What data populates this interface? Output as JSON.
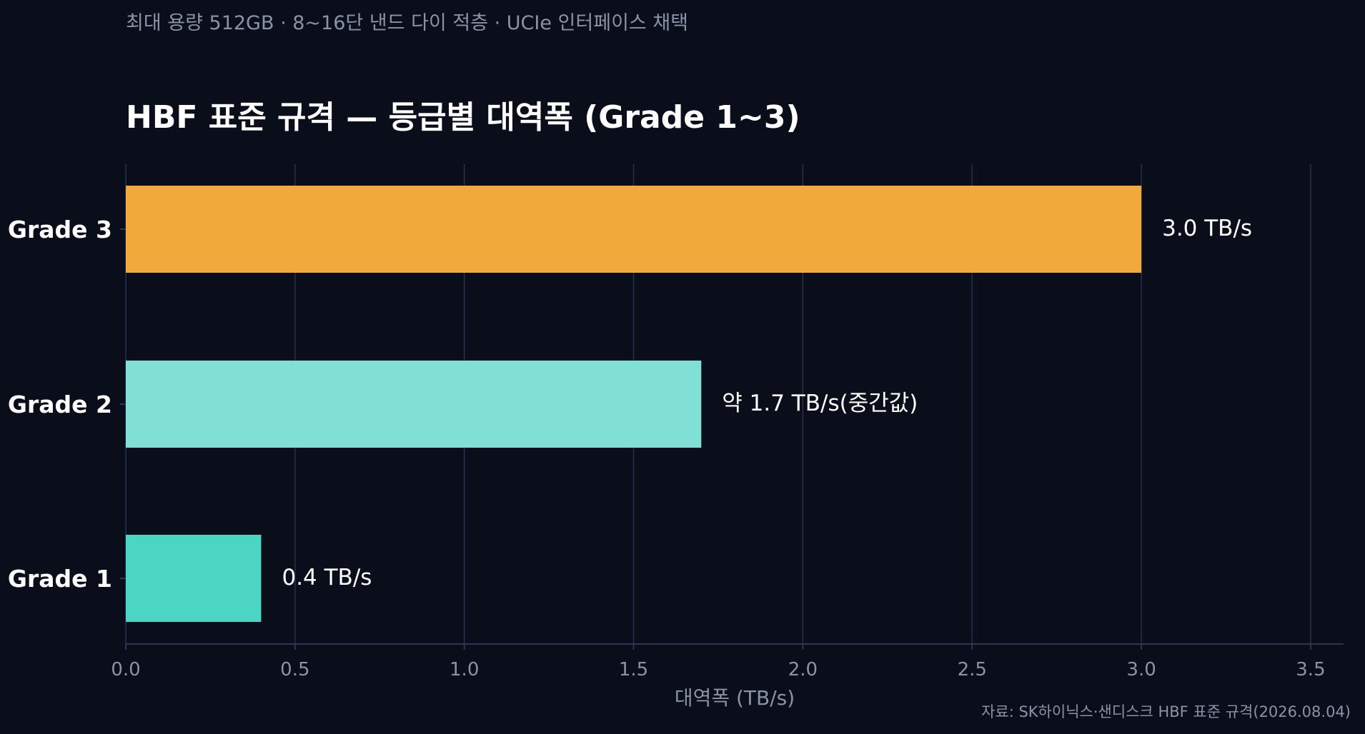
{
  "chart_data": {
    "type": "bar",
    "orientation": "horizontal",
    "subtitle": "최대 용량 512GB · 8~16단 낸드 다이 적층 · UCIe 인터페이스 채택",
    "title": "HBF 표준 규격 — 등급별 대역폭 (Grade 1~3)",
    "categories": [
      "Grade 3",
      "Grade 2",
      "Grade 1"
    ],
    "values": [
      3.0,
      1.7,
      0.4
    ],
    "data_labels": [
      "3.0 TB/s",
      "약 1.7 TB/s(중간값)",
      "0.4 TB/s"
    ],
    "colors": [
      "#f2a93b",
      "#80e0d5",
      "#4dd5c4"
    ],
    "xlabel": "대역폭 (TB/s)",
    "xlim": [
      0,
      3.6
    ],
    "xticks": [
      "0.0",
      "0.5",
      "1.0",
      "1.5",
      "2.0",
      "2.5",
      "3.0",
      "3.5"
    ],
    "grid": true,
    "source": "자료: SK하이닉스·샌디스크 HBF 표준 규격(2026.08.04)"
  }
}
